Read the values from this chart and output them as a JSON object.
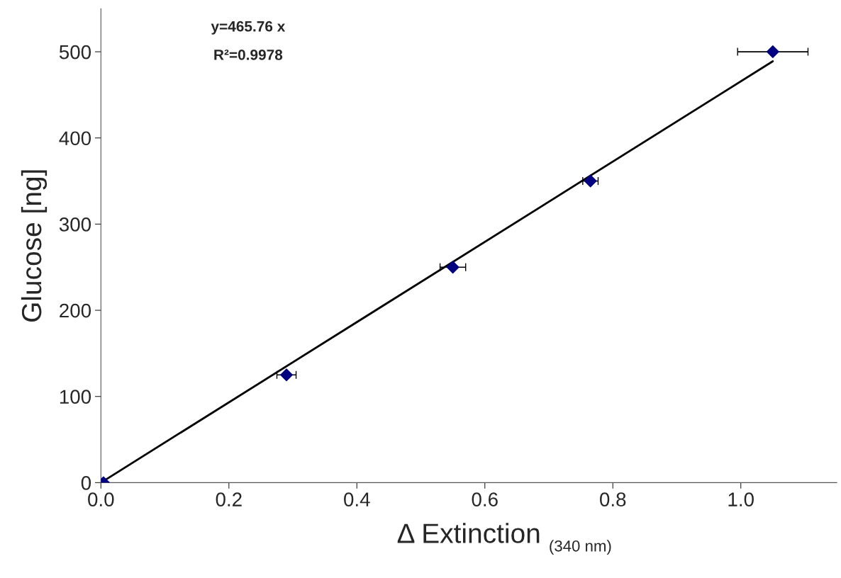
{
  "chart_data": {
    "type": "scatter",
    "xlabel": "Δ Extinction $_{(340 nm)}$",
    "ylabel": "Glucose [ng]",
    "annotations": [
      "y=465.76 x",
      "R²=0.9978"
    ],
    "series": [
      {
        "color": "#000080",
        "marker": "diamond",
        "x": [
          0.004,
          0.29,
          0.55,
          0.765,
          1.05
        ],
        "values": [
          0,
          125,
          250,
          350,
          500
        ],
        "xerrors": [
          null,
          0.015,
          0.02,
          0.012,
          0.055
        ]
      },
      {
        "type": "line",
        "color": "#000000",
        "marker": "none",
        "line_style": "solid",
        "x": [
          0,
          1.05
        ],
        "values": [
          0,
          489
        ]
      }
    ],
    "xlim": [
      0,
      1.15
    ],
    "xticks": [
      {
        "value": 0,
        "label": "0.0"
      },
      0.2,
      0.4,
      0.6,
      0.8,
      {
        "value": 1,
        "label": "1.0"
      }
    ],
    "ylim": [
      0,
      550
    ],
    "yticks": [
      0,
      100,
      200,
      300,
      400,
      500
    ],
    "grid": false,
    "legend": false
  }
}
